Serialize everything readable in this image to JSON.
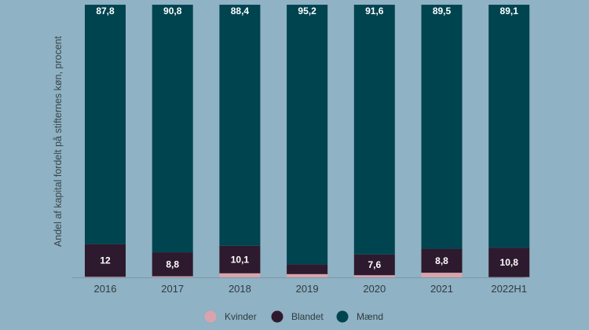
{
  "chart_data": {
    "type": "bar",
    "stacked": true,
    "categories": [
      "2016",
      "2017",
      "2018",
      "2019",
      "2020",
      "2021",
      "2022H1"
    ],
    "series": [
      {
        "name": "Kvinder",
        "color": "#d9a3ae",
        "values": [
          0.2,
          0.4,
          1.5,
          1.2,
          0.8,
          1.7,
          0.1
        ],
        "labels": [
          "",
          "",
          "",
          "",
          "",
          "",
          ""
        ]
      },
      {
        "name": "Blandet",
        "color": "#2e1a2e",
        "values": [
          12,
          8.8,
          10.1,
          3.6,
          7.6,
          8.8,
          10.8
        ],
        "labels": [
          "12",
          "8,8",
          "10,1",
          "",
          "7,6",
          "8,8",
          "10,8"
        ]
      },
      {
        "name": "Mænd",
        "color": "#004450",
        "values": [
          87.8,
          90.8,
          88.4,
          95.2,
          91.6,
          89.5,
          89.1
        ],
        "labels": [
          "87,8",
          "90,8",
          "88,4",
          "95,2",
          "91,6",
          "89,5",
          "89,1"
        ]
      }
    ],
    "ylabel": "Andel af kapital fordelt på stifternes køn, procent",
    "ylim": [
      0,
      100
    ],
    "grid": false,
    "legend_position": "bottom-center"
  }
}
